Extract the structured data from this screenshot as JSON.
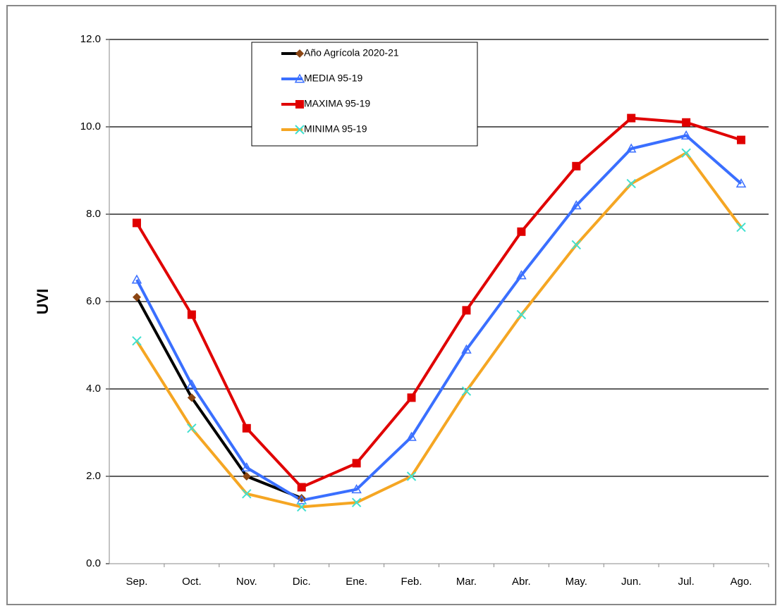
{
  "chart_data": {
    "type": "line",
    "y_label": "UVI",
    "categories": [
      "Sep.",
      "Oct.",
      "Nov.",
      "Dic.",
      "Ene.",
      "Feb.",
      "Mar.",
      "Abr.",
      "May.",
      "Jun.",
      "Jul.",
      "Ago."
    ],
    "series": [
      {
        "name": "Año  Agrícola 2020-21",
        "color": "#000000",
        "marker": "diamond",
        "marker_color": "#8b4513",
        "values": [
          6.1,
          3.8,
          2.0,
          1.5,
          null,
          null,
          null,
          null,
          null,
          null,
          null,
          null
        ]
      },
      {
        "name": "MEDIA 95-19",
        "color": "#3a6fff",
        "marker": "triangle",
        "marker_color": "#3a6fff",
        "values": [
          6.5,
          4.1,
          2.2,
          1.45,
          1.7,
          2.9,
          4.9,
          6.6,
          8.2,
          9.5,
          9.8,
          8.7
        ]
      },
      {
        "name": "MAXIMA 95-19",
        "color": "#e00000",
        "marker": "square",
        "marker_color": "#e00000",
        "values": [
          7.8,
          5.7,
          3.1,
          1.75,
          2.3,
          3.8,
          5.8,
          7.6,
          9.1,
          10.2,
          10.1,
          9.7
        ]
      },
      {
        "name": "MINIMA 95-19",
        "color": "#f5a623",
        "marker": "x",
        "marker_color": "#40e0d0",
        "values": [
          5.1,
          3.1,
          1.6,
          1.3,
          1.4,
          2.0,
          3.95,
          5.7,
          7.3,
          8.7,
          9.4,
          7.7
        ]
      }
    ],
    "ylim": [
      0,
      12
    ],
    "yticks": [
      {
        "value": 0,
        "label": "0.0"
      },
      {
        "value": 2,
        "label": "2.0"
      },
      {
        "value": 4,
        "label": "4.0"
      },
      {
        "value": 6,
        "label": "6.0"
      },
      {
        "value": 8,
        "label": "8.0"
      },
      {
        "value": 10,
        "label": "10.0"
      },
      {
        "value": 12,
        "label": "12.0"
      }
    ],
    "grid": true
  }
}
